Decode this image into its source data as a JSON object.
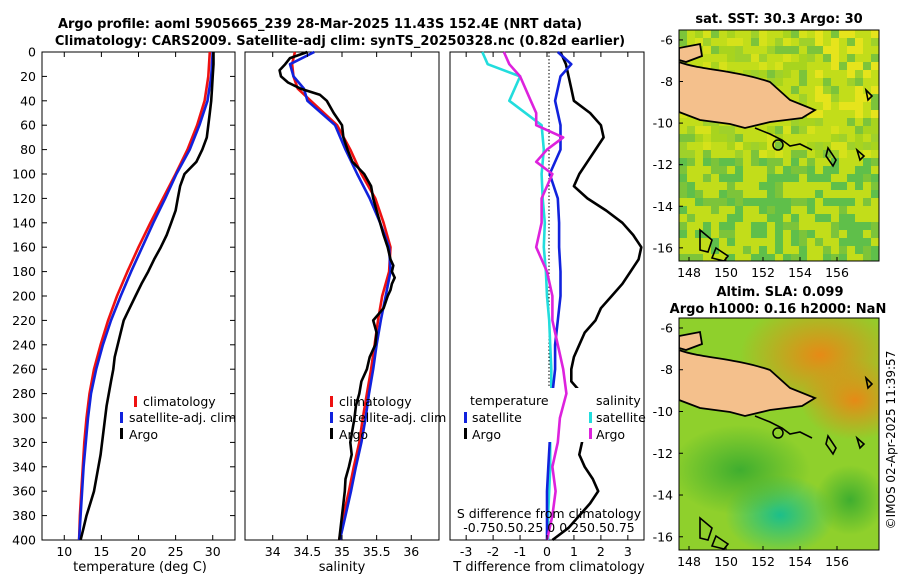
{
  "title": {
    "line1": "Argo profile: aoml 5905665_239 28-Mar-2025 11.43S 152.4E (NRT data)",
    "line2": "Climatology: CARS2009. Satellite-adj clim: synTS_20250328.nc (0.82d earlier)"
  },
  "maps": {
    "sst_title": "sat. SST: 30.3 Argo: 30",
    "sla_title1": "Altim. SLA: 0.099",
    "sla_title2": "Argo h1000: 0.16 h2000: NaN",
    "lon_ticks": [
      "148",
      "150",
      "152",
      "154",
      "156"
    ],
    "lat_ticks": [
      "-6",
      "-8",
      "-10",
      "-12",
      "-14",
      "-16"
    ]
  },
  "watermark": "©IMOS 02-Apr-2025 11:39:57",
  "colors": {
    "climatology": "#ee1111",
    "satellite": "#1122dd",
    "argo": "#000000",
    "sat_diff": "#22dddd",
    "sal_diff": "#dd22dd",
    "land": "#f4c08c"
  },
  "chart_data": [
    {
      "type": "line",
      "xlabel": "temperature (deg C)",
      "ylabel": "",
      "xlim": [
        7,
        33
      ],
      "ylim": [
        400,
        0
      ],
      "xticks": [
        10,
        15,
        20,
        25,
        30
      ],
      "yticks": [
        0,
        20,
        40,
        60,
        80,
        100,
        120,
        140,
        160,
        180,
        200,
        220,
        240,
        260,
        280,
        300,
        320,
        340,
        360,
        380,
        400
      ],
      "legend": [
        "climatology",
        "satellite-adj. clim",
        "Argo"
      ],
      "series": [
        {
          "name": "climatology",
          "depth": [
            0,
            20,
            40,
            60,
            80,
            100,
            120,
            140,
            160,
            180,
            200,
            220,
            240,
            260,
            280,
            300,
            320,
            340,
            360,
            380,
            400
          ],
          "values": [
            29.6,
            29.4,
            28.9,
            27.9,
            26.6,
            25.0,
            23.3,
            21.6,
            20.0,
            18.5,
            17.1,
            15.9,
            14.9,
            14.0,
            13.4,
            13.0,
            12.7,
            12.5,
            12.3,
            12.1,
            12.0
          ]
        },
        {
          "name": "satellite-adj. clim",
          "depth": [
            0,
            20,
            40,
            60,
            80,
            100,
            120,
            140,
            160,
            180,
            200,
            220,
            240,
            260,
            280,
            300,
            320,
            340,
            360,
            380,
            400
          ],
          "values": [
            30.0,
            29.8,
            29.3,
            28.2,
            26.9,
            25.1,
            23.6,
            22.0,
            20.5,
            19.0,
            17.6,
            16.3,
            15.2,
            14.3,
            13.6,
            13.2,
            12.9,
            12.6,
            12.4,
            12.2,
            12.0
          ]
        },
        {
          "name": "Argo",
          "depth": [
            0,
            10,
            20,
            30,
            40,
            50,
            60,
            70,
            80,
            90,
            100,
            110,
            120,
            130,
            140,
            150,
            160,
            170,
            180,
            190,
            200,
            210,
            220,
            230,
            240,
            250,
            260,
            270,
            280,
            290,
            300,
            310,
            320,
            330,
            340,
            350,
            360,
            370,
            380,
            390,
            400
          ],
          "values": [
            30.1,
            30.1,
            30.0,
            29.9,
            29.8,
            29.6,
            29.4,
            29.2,
            28.6,
            27.8,
            26.2,
            25.6,
            25.3,
            25.0,
            24.4,
            23.8,
            23.0,
            22.1,
            21.3,
            20.4,
            19.6,
            18.8,
            18.0,
            17.6,
            17.2,
            16.8,
            16.6,
            16.3,
            16.0,
            15.7,
            15.5,
            15.3,
            15.1,
            14.9,
            14.6,
            14.3,
            14.0,
            13.5,
            13.0,
            12.6,
            12.2
          ]
        }
      ]
    },
    {
      "type": "line",
      "xlabel": "salinity",
      "xlim": [
        33.6,
        36.4
      ],
      "ylim": [
        400,
        0
      ],
      "xticks": [
        34,
        34.5,
        35,
        35.5,
        36
      ],
      "legend": [
        "climatology",
        "satellite-adj. clim",
        "Argo"
      ],
      "series": [
        {
          "name": "climatology",
          "depth": [
            0,
            10,
            20,
            30,
            40,
            60,
            80,
            100,
            120,
            140,
            160,
            180,
            200,
            220,
            240,
            260,
            280,
            300,
            320,
            340,
            360,
            380,
            400
          ],
          "values": [
            34.32,
            34.28,
            34.3,
            34.36,
            34.55,
            34.93,
            35.12,
            35.28,
            35.48,
            35.6,
            35.7,
            35.68,
            35.58,
            35.52,
            35.47,
            35.42,
            35.36,
            35.3,
            35.25,
            35.17,
            35.1,
            35.02,
            34.96
          ]
        },
        {
          "name": "satellite-adj. clim",
          "depth": [
            0,
            10,
            20,
            30,
            40,
            60,
            80,
            100,
            120,
            140,
            160,
            180,
            200,
            220,
            240,
            260,
            280,
            300,
            320,
            340,
            360,
            380,
            400
          ],
          "values": [
            34.6,
            34.25,
            34.3,
            34.45,
            34.5,
            34.9,
            35.05,
            35.22,
            35.4,
            35.55,
            35.68,
            35.7,
            35.63,
            35.56,
            35.5,
            35.45,
            35.39,
            35.34,
            35.28,
            35.2,
            35.13,
            35.05,
            34.97
          ]
        },
        {
          "name": "Argo",
          "depth": [
            0,
            5,
            10,
            15,
            20,
            25,
            30,
            35,
            40,
            50,
            60,
            70,
            80,
            90,
            100,
            110,
            120,
            130,
            140,
            150,
            160,
            170,
            175,
            180,
            185,
            190,
            195,
            200,
            210,
            220,
            230,
            240,
            250,
            260,
            270,
            280,
            290,
            300,
            310,
            320,
            330,
            340,
            350,
            360,
            370,
            380,
            390,
            400
          ],
          "values": [
            34.5,
            34.25,
            34.18,
            34.1,
            34.12,
            34.22,
            34.4,
            34.68,
            34.78,
            34.88,
            35.0,
            35.02,
            35.08,
            35.15,
            35.32,
            35.42,
            35.45,
            35.5,
            35.55,
            35.6,
            35.66,
            35.7,
            35.74,
            35.72,
            35.76,
            35.72,
            35.7,
            35.66,
            35.6,
            35.45,
            35.5,
            35.48,
            35.4,
            35.36,
            35.28,
            35.25,
            35.2,
            35.18,
            35.15,
            35.12,
            35.14,
            35.1,
            35.05,
            35.04,
            35.02,
            35.0,
            34.98,
            34.96
          ]
        }
      ]
    },
    {
      "type": "line",
      "xlabel": "T difference from climatology",
      "x2label": "S difference from climatology",
      "xlim": [
        -3.6,
        3.6
      ],
      "x2lim": [
        -0.9,
        0.9
      ],
      "ylim": [
        400,
        0
      ],
      "xticks": [
        -3,
        -2,
        -1,
        0,
        1,
        2,
        3
      ],
      "x2ticks": [
        "-0.75",
        "-0.5",
        "-0.25",
        "0",
        "0.25",
        "0.5",
        "0.75"
      ],
      "x2tick_text": "-0.750.50.25 0 0.250.50.75",
      "legend_temperature_title": "temperature",
      "legend_salinity_title": "salinity",
      "legend": [
        "satellite",
        "Argo",
        "satellite",
        "Argo"
      ],
      "series": [
        {
          "name": "temperature satellite",
          "depth": [
            0,
            10,
            20,
            40,
            60,
            80,
            100,
            120,
            140,
            160,
            180,
            200,
            220,
            240,
            260,
            280,
            300,
            320,
            340,
            360,
            380,
            400
          ],
          "values": [
            0.4,
            0.9,
            0.5,
            0.3,
            0.5,
            0.5,
            0.1,
            0.4,
            0.45,
            0.45,
            0.5,
            0.5,
            0.4,
            0.3,
            0.3,
            0.2,
            0.1,
            0.1,
            0.05,
            0.0,
            0.0,
            0.0
          ]
        },
        {
          "name": "temperature Argo",
          "depth": [
            0,
            10,
            20,
            30,
            40,
            50,
            60,
            70,
            80,
            90,
            100,
            110,
            120,
            130,
            140,
            150,
            160,
            170,
            180,
            190,
            200,
            210,
            220,
            230,
            240,
            250,
            260,
            270,
            280,
            290,
            300,
            310,
            320,
            330,
            340,
            350,
            360,
            370,
            380,
            390,
            400
          ],
          "values": [
            0.5,
            0.7,
            0.8,
            0.9,
            1.0,
            1.6,
            2.0,
            2.1,
            1.8,
            1.5,
            1.2,
            1.0,
            1.5,
            2.2,
            2.8,
            3.2,
            3.5,
            3.4,
            3.1,
            2.8,
            2.4,
            2.0,
            1.8,
            1.4,
            1.2,
            1.0,
            0.9,
            0.9,
            1.3,
            1.5,
            1.5,
            1.4,
            1.3,
            1.2,
            1.4,
            1.7,
            1.9,
            1.6,
            1.2,
            0.8,
            0.2
          ]
        },
        {
          "name": "salinity satellite",
          "depth": [
            0,
            10,
            20,
            40,
            60,
            80,
            100,
            120,
            140,
            160,
            180,
            200,
            220,
            240,
            260,
            280,
            300,
            320,
            340,
            360,
            380,
            400
          ],
          "values": [
            -0.6,
            -0.55,
            -0.25,
            -0.35,
            -0.05,
            -0.03,
            -0.05,
            -0.04,
            -0.02,
            -0.03,
            -0.01,
            0.0,
            0.02,
            0.03,
            0.04,
            0.04,
            0.04,
            0.03,
            0.03,
            0.02,
            0.01,
            0.01
          ]
        },
        {
          "name": "salinity Argo",
          "depth": [
            0,
            10,
            20,
            40,
            50,
            60,
            70,
            80,
            90,
            100,
            120,
            140,
            160,
            180,
            200,
            220,
            240,
            260,
            280,
            300,
            320,
            340,
            360,
            380,
            400
          ],
          "values": [
            -0.4,
            -0.35,
            -0.25,
            -0.15,
            -0.1,
            -0.1,
            0.15,
            0.0,
            -0.1,
            0.05,
            -0.05,
            -0.05,
            -0.1,
            0.0,
            0.05,
            0.05,
            0.1,
            0.15,
            0.18,
            0.12,
            0.1,
            0.05,
            0.08,
            0.05,
            0.0
          ]
        }
      ]
    }
  ]
}
